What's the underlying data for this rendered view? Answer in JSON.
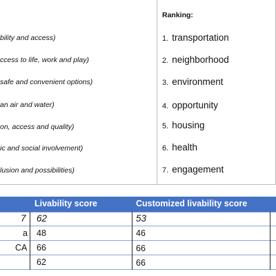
{
  "criteria": [
    "bility and access)",
    "ccess to life, work and play)",
    "safe and convenient options)",
    "an air and water)",
    "on, access and quality)",
    "ic and social involvement)",
    "lusion and possibilities)"
  ],
  "ranking": {
    "heading": "Ranking:",
    "items": [
      {
        "num": "1.",
        "label": "transportation"
      },
      {
        "num": "2.",
        "label": "neighborhood"
      },
      {
        "num": "3.",
        "label": "environment"
      },
      {
        "num": "4.",
        "label": "opportunity"
      },
      {
        "num": "5.",
        "label": "housing"
      },
      {
        "num": "6.",
        "label": "health"
      },
      {
        "num": "7.",
        "label": "engagement"
      }
    ]
  },
  "table": {
    "headers": {
      "col1": "Livability score",
      "col2": "Customized livability score"
    },
    "rows": [
      {
        "name": "7",
        "score": "62",
        "custom": "53"
      },
      {
        "name": "a",
        "score": "48",
        "custom": "46"
      },
      {
        "name": "CA",
        "score": "66",
        "custom": "66"
      },
      {
        "name": "",
        "score": "62",
        "custom": "66"
      }
    ]
  }
}
